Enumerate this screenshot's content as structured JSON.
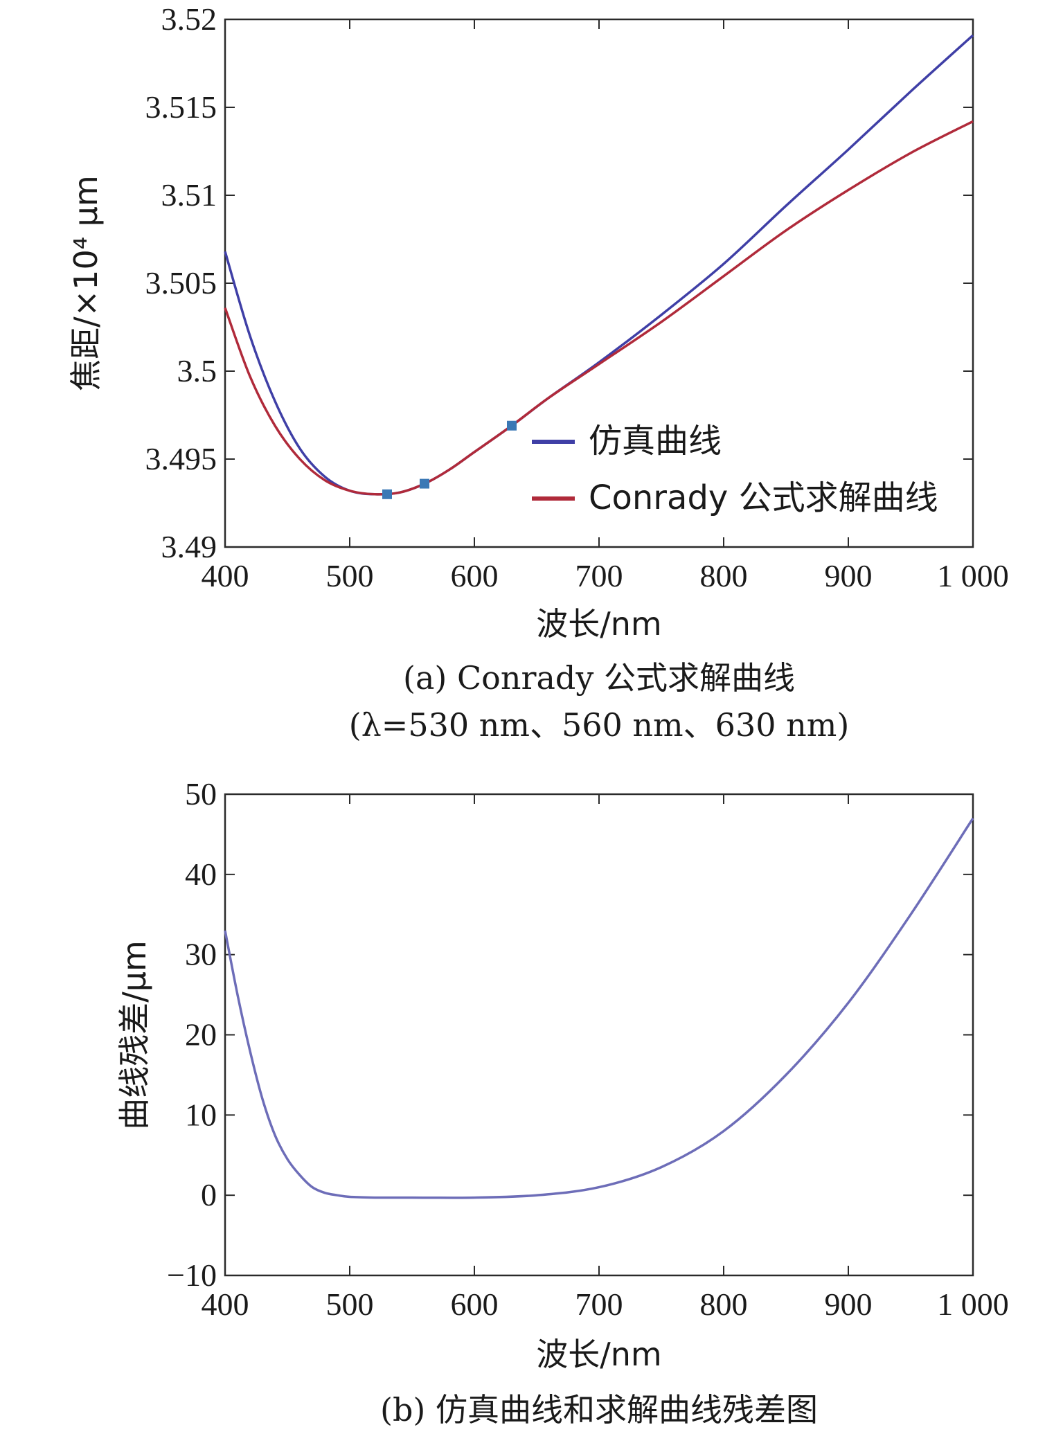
{
  "chart_data": [
    {
      "type": "line",
      "xlabel": "波长/nm",
      "ylabel": "焦距/×10⁴ μm",
      "xlim": [
        400,
        1000
      ],
      "ylim": [
        3.49,
        3.52
      ],
      "xticks": [
        400,
        500,
        600,
        700,
        800,
        900,
        1000
      ],
      "xtick_labels": [
        "400",
        "500",
        "600",
        "700",
        "800",
        "900",
        "1 000"
      ],
      "yticks": [
        3.49,
        3.495,
        3.5,
        3.505,
        3.51,
        3.515,
        3.52
      ],
      "ytick_labels": [
        "3.49",
        "3.495",
        "3.5",
        "3.505",
        "3.51",
        "3.515",
        "3.52"
      ],
      "caption_line1": "(a) Conrady 公式求解曲线",
      "caption_line2": "(λ=530 nm、560 nm、630 nm)",
      "legend_position": "lower-right",
      "series": [
        {
          "name": "仿真曲线",
          "color": "#3f3fa6",
          "x": [
            400,
            420,
            440,
            460,
            480,
            500,
            520,
            540,
            560,
            580,
            600,
            630,
            660,
            700,
            750,
            800,
            850,
            900,
            950,
            1000
          ],
          "y": [
            3.5068,
            3.502,
            3.4983,
            3.4956,
            3.494,
            3.4932,
            3.493,
            3.4931,
            3.4936,
            3.4944,
            3.4954,
            3.4969,
            3.4985,
            3.5005,
            3.5032,
            3.5061,
            3.5094,
            3.5126,
            3.5159,
            3.5191
          ]
        },
        {
          "name": "Conrady 公式求解曲线",
          "color": "#b02a3a",
          "x": [
            400,
            420,
            440,
            460,
            480,
            500,
            520,
            540,
            560,
            580,
            600,
            630,
            660,
            700,
            750,
            800,
            850,
            900,
            950,
            1000
          ],
          "y": [
            3.5036,
            3.4997,
            3.4969,
            3.495,
            3.4938,
            3.4932,
            3.493,
            3.4931,
            3.4936,
            3.4944,
            3.4954,
            3.4969,
            3.4985,
            3.5004,
            3.5028,
            3.5054,
            3.508,
            3.5103,
            3.5124,
            3.5142
          ]
        }
      ],
      "markers": {
        "color": "#3a78b5",
        "points": [
          {
            "x": 530,
            "y": 3.493
          },
          {
            "x": 560,
            "y": 3.4936
          },
          {
            "x": 630,
            "y": 3.4969
          }
        ]
      }
    },
    {
      "type": "line",
      "xlabel": "波长/nm",
      "ylabel": "曲线残差/μm",
      "xlim": [
        400,
        1000
      ],
      "ylim": [
        -10,
        50
      ],
      "xticks": [
        400,
        500,
        600,
        700,
        800,
        900,
        1000
      ],
      "xtick_labels": [
        "400",
        "500",
        "600",
        "700",
        "800",
        "900",
        "1 000"
      ],
      "yticks": [
        -10,
        0,
        10,
        20,
        30,
        40,
        50
      ],
      "ytick_labels": [
        "−10",
        "0",
        "10",
        "20",
        "30",
        "40",
        "50"
      ],
      "caption": "(b) 仿真曲线和求解曲线残差图",
      "series": [
        {
          "color": "#6d6db8",
          "x": [
            400,
            410,
            420,
            430,
            440,
            450,
            460,
            470,
            480,
            490,
            500,
            520,
            550,
            600,
            650,
            700,
            750,
            800,
            850,
            900,
            950,
            1000
          ],
          "y": [
            33,
            25,
            18,
            12,
            7.5,
            4.5,
            2.5,
            1.0,
            0.3,
            0.0,
            -0.2,
            -0.3,
            -0.3,
            -0.3,
            0.0,
            1.0,
            3.5,
            8.0,
            15.0,
            24.0,
            35.0,
            47.0
          ]
        }
      ]
    }
  ]
}
